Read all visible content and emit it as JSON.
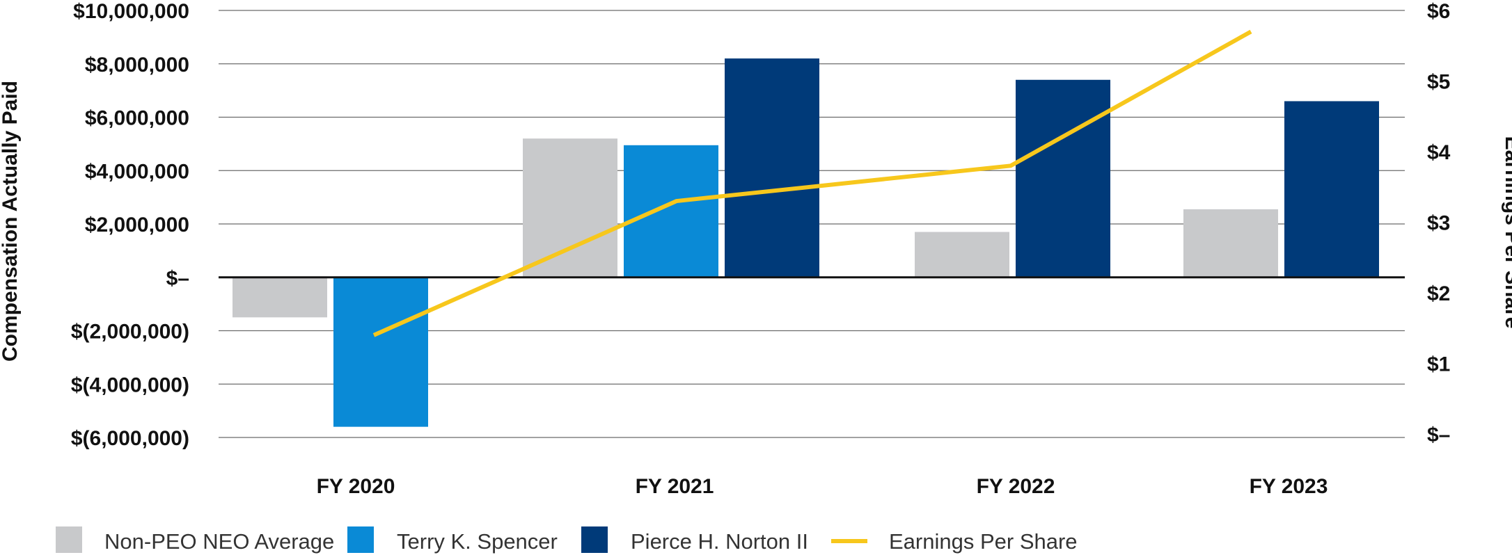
{
  "chart_data": {
    "type": "bar",
    "categories": [
      "FY 2020",
      "FY 2021",
      "FY 2022",
      "FY 2023"
    ],
    "ylabel": "Compensation Actually Paid",
    "y2label": "Earnings Per Share",
    "ylim": [
      -6000000,
      10000000
    ],
    "y2lim": [
      0,
      6
    ],
    "y_ticks": [
      {
        "value": 10000000,
        "label": "$10,000,000"
      },
      {
        "value": 8000000,
        "label": "$8,000,000"
      },
      {
        "value": 6000000,
        "label": "$6,000,000"
      },
      {
        "value": 4000000,
        "label": "$4,000,000"
      },
      {
        "value": 2000000,
        "label": "$2,000,000"
      },
      {
        "value": 0,
        "label": "$–"
      },
      {
        "value": -2000000,
        "label": "$(2,000,000)"
      },
      {
        "value": -4000000,
        "label": "$(4,000,000)"
      },
      {
        "value": -6000000,
        "label": "$(6,000,000)"
      }
    ],
    "y2_ticks": [
      {
        "value": 6,
        "label": "$6"
      },
      {
        "value": 5,
        "label": "$5"
      },
      {
        "value": 4,
        "label": "$4"
      },
      {
        "value": 3,
        "label": "$3"
      },
      {
        "value": 2,
        "label": "$2"
      },
      {
        "value": 1,
        "label": "$1"
      },
      {
        "value": 0,
        "label": "$–"
      }
    ],
    "series": [
      {
        "name": "Non-PEO NEO Average",
        "kind": "bar",
        "color": "#c8c9cb",
        "values": [
          -1500000,
          5200000,
          1700000,
          2550000
        ]
      },
      {
        "name": "Terry K. Spencer",
        "kind": "bar",
        "color": "#0a8ad6",
        "values": [
          -5600000,
          4950000,
          null,
          null
        ]
      },
      {
        "name": "Pierce H. Norton II",
        "kind": "bar",
        "color": "#003a79",
        "values": [
          null,
          8200000,
          7400000,
          6600000
        ]
      },
      {
        "name": "Earnings Per Share",
        "kind": "line",
        "axis": "right",
        "color": "#f7c71c",
        "values": [
          1.4,
          3.3,
          3.8,
          5.7
        ]
      }
    ],
    "legend_position": "bottom-left",
    "grid": true
  }
}
